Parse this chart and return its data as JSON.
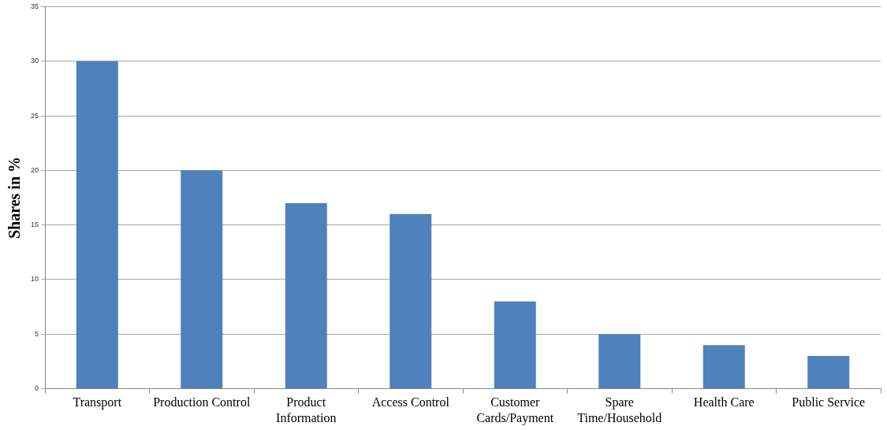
{
  "chart_data": {
    "type": "bar",
    "ylabel": "Shares in %",
    "categories": [
      "Transport",
      "Production Control",
      "Product Information",
      "Access Control",
      "Customer Cards/Payment",
      "Spare Time/Household",
      "Health Care",
      "Public Service"
    ],
    "values": [
      30,
      20,
      17,
      16,
      8,
      5,
      4,
      3
    ],
    "color": "#4f81bd",
    "ylim": [
      0,
      35
    ],
    "yticks": [
      0,
      5,
      10,
      15,
      20,
      25,
      30,
      35
    ],
    "grid": "y",
    "legend": false
  }
}
